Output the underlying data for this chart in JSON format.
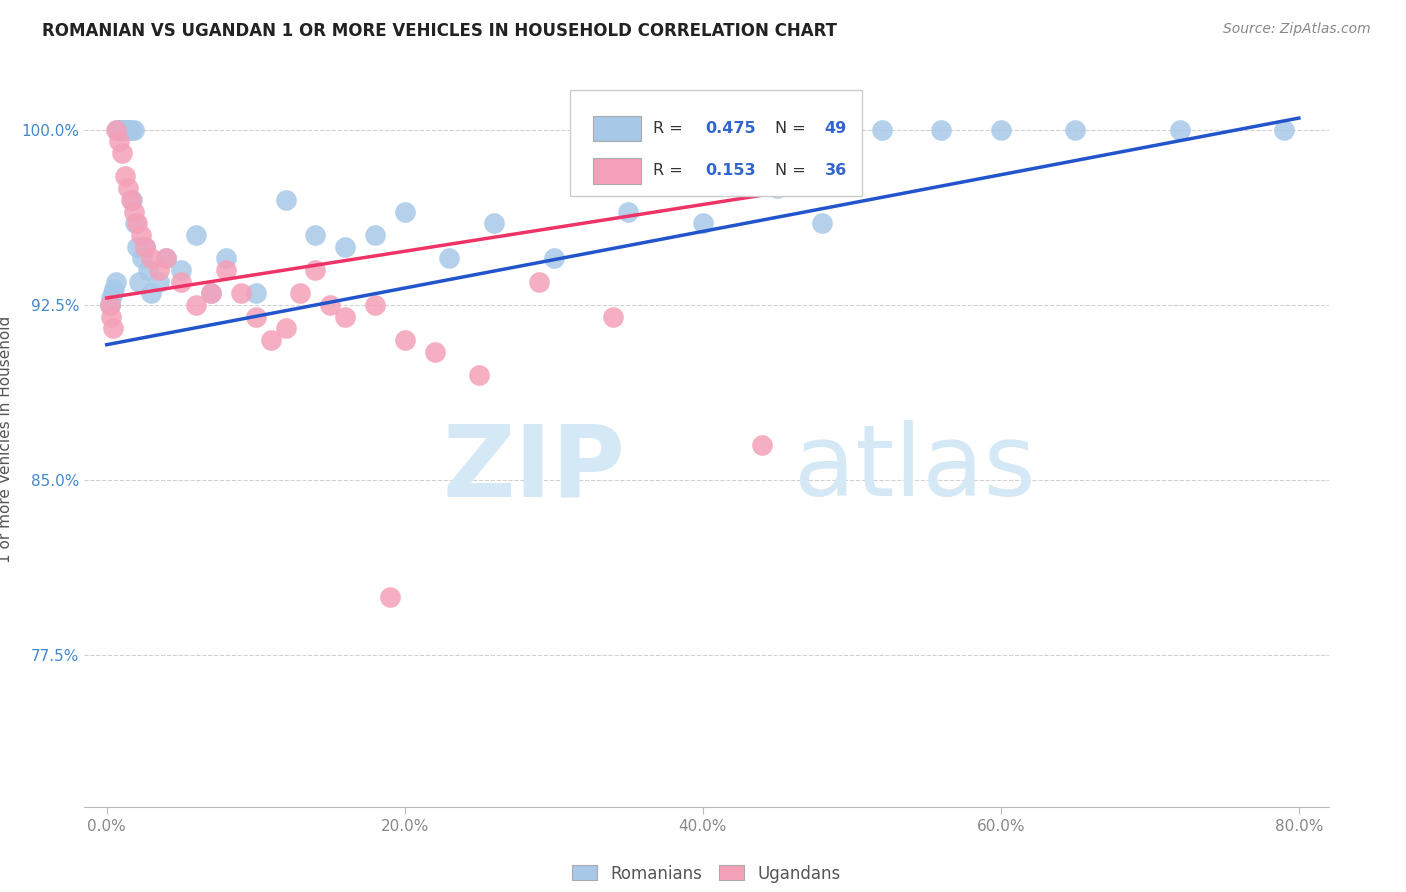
{
  "title": "ROMANIAN VS UGANDAN 1 OR MORE VEHICLES IN HOUSEHOLD CORRELATION CHART",
  "source": "Source: ZipAtlas.com",
  "ylabel": "1 or more Vehicles in Household",
  "blue_color": "#a8c8e8",
  "pink_color": "#f4a0b8",
  "blue_line_color": "#2255cc",
  "pink_line_color": "#ee3366",
  "blue_label": "Romanians",
  "pink_label": "Ugandans",
  "legend_R_blue": "0.475",
  "legend_N_blue": "49",
  "legend_R_pink": "0.153",
  "legend_N_pink": "36",
  "xmin": -1.5,
  "xmax": 82.0,
  "ymin": 71.0,
  "ymax": 102.5,
  "xticks": [
    0,
    20,
    40,
    60,
    80
  ],
  "xticklabels": [
    "0.0%",
    "20.0%",
    "40.0%",
    "60.0%",
    "80.0%"
  ],
  "yticks": [
    77.5,
    85.0,
    92.5,
    100.0
  ],
  "yticklabels": [
    "77.5%",
    "85.0%",
    "92.5%",
    "100.0%"
  ],
  "blue_x": [
    0.2,
    0.3,
    0.4,
    0.5,
    0.6,
    0.7,
    0.8,
    0.9,
    1.0,
    1.1,
    1.2,
    1.3,
    1.4,
    1.5,
    1.6,
    1.7,
    1.8,
    1.9,
    2.0,
    2.2,
    2.4,
    2.6,
    2.8,
    3.0,
    3.5,
    4.0,
    5.0,
    6.0,
    7.0,
    8.0,
    10.0,
    12.0,
    14.0,
    16.0,
    18.0,
    20.0,
    23.0,
    26.0,
    30.0,
    35.0,
    40.0,
    45.0,
    48.0,
    52.0,
    56.0,
    60.0,
    65.0,
    72.0,
    79.0
  ],
  "blue_y": [
    92.5,
    92.8,
    93.0,
    93.2,
    93.5,
    100.0,
    100.0,
    100.0,
    100.0,
    100.0,
    100.0,
    100.0,
    100.0,
    100.0,
    100.0,
    97.0,
    100.0,
    96.0,
    95.0,
    93.5,
    94.5,
    95.0,
    94.0,
    93.0,
    93.5,
    94.5,
    94.0,
    95.5,
    93.0,
    94.5,
    93.0,
    97.0,
    95.5,
    95.0,
    95.5,
    96.5,
    94.5,
    96.0,
    94.5,
    96.5,
    96.0,
    97.5,
    96.0,
    100.0,
    100.0,
    100.0,
    100.0,
    100.0,
    100.0
  ],
  "pink_x": [
    0.2,
    0.3,
    0.4,
    0.6,
    0.8,
    1.0,
    1.2,
    1.4,
    1.6,
    1.8,
    2.0,
    2.3,
    2.6,
    3.0,
    3.5,
    4.0,
    5.0,
    6.0,
    7.0,
    8.0,
    9.0,
    10.0,
    11.0,
    12.0,
    13.0,
    14.0,
    15.0,
    16.0,
    18.0,
    20.0,
    22.0,
    25.0,
    29.0,
    34.0,
    44.0,
    19.0
  ],
  "pink_y": [
    92.5,
    92.0,
    91.5,
    100.0,
    99.5,
    99.0,
    98.0,
    97.5,
    97.0,
    96.5,
    96.0,
    95.5,
    95.0,
    94.5,
    94.0,
    94.5,
    93.5,
    92.5,
    93.0,
    94.0,
    93.0,
    92.0,
    91.0,
    91.5,
    93.0,
    94.0,
    92.5,
    92.0,
    92.5,
    91.0,
    90.5,
    89.5,
    93.5,
    92.0,
    86.5,
    80.0
  ],
  "blue_line_x": [
    0.0,
    80.0
  ],
  "blue_line_y": [
    90.8,
    100.5
  ],
  "pink_line_x": [
    0.0,
    44.0
  ],
  "pink_line_y": [
    92.8,
    97.2
  ],
  "watermark_color": "#d5e8f5"
}
